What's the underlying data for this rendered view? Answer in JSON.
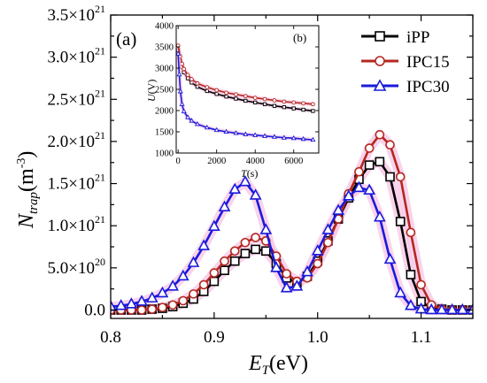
{
  "chart_data": [
    {
      "type": "line",
      "panel_label": "(a)",
      "xlabel_main": "E",
      "xlabel_sub": "T",
      "xlabel_unit": "(eV)",
      "ylabel_main": "N",
      "ylabel_sub": "trap",
      "ylabel_unit_base": "(m",
      "ylabel_unit_sup": "-3",
      "ylabel_unit_close": ")",
      "xlim": [
        0.8,
        1.15
      ],
      "ylim": [
        -0.1,
        3.5
      ],
      "y_exponent_unit": 1e+21,
      "x_ticks": [
        0.8,
        0.9,
        1.0,
        1.1
      ],
      "x_tick_labels": [
        "0.8",
        "0.9",
        "1.0",
        "1.1"
      ],
      "y_ticks": [
        {
          "value": 0.0,
          "mant": "0.0",
          "exp": ""
        },
        {
          "value": 0.5,
          "mant": "5.0×10",
          "exp": "20"
        },
        {
          "value": 1.0,
          "mant": "1.0×10",
          "exp": "21"
        },
        {
          "value": 1.5,
          "mant": "1.5×10",
          "exp": "21"
        },
        {
          "value": 2.0,
          "mant": "2.0×10",
          "exp": "21"
        },
        {
          "value": 2.5,
          "mant": "2.5×10",
          "exp": "21"
        },
        {
          "value": 3.0,
          "mant": "3.0×10",
          "exp": "21"
        },
        {
          "value": 3.5,
          "mant": "3.5×10",
          "exp": "21"
        }
      ],
      "legend_position": "top-right",
      "series": [
        {
          "name": "iPP",
          "color": "#000000",
          "marker": "square",
          "x": [
            0.8,
            0.81,
            0.82,
            0.83,
            0.84,
            0.85,
            0.86,
            0.87,
            0.88,
            0.89,
            0.9,
            0.91,
            0.92,
            0.93,
            0.94,
            0.95,
            0.96,
            0.97,
            0.98,
            0.99,
            1.0,
            1.01,
            1.02,
            1.03,
            1.04,
            1.05,
            1.06,
            1.07,
            1.08,
            1.09,
            1.1,
            1.11,
            1.12,
            1.13,
            1.14,
            1.15
          ],
          "y": [
            0.0,
            0.0,
            0.0,
            0.0,
            0.01,
            0.02,
            0.04,
            0.08,
            0.13,
            0.22,
            0.34,
            0.47,
            0.58,
            0.67,
            0.72,
            0.7,
            0.55,
            0.38,
            0.32,
            0.4,
            0.58,
            0.82,
            1.08,
            1.33,
            1.55,
            1.72,
            1.76,
            1.58,
            1.05,
            0.42,
            0.1,
            0.02,
            0.01,
            0.0,
            0.0,
            0.0
          ]
        },
        {
          "name": "IPC15",
          "color": "#b5271f",
          "marker": "circle",
          "x": [
            0.8,
            0.81,
            0.82,
            0.83,
            0.84,
            0.85,
            0.86,
            0.87,
            0.88,
            0.89,
            0.9,
            0.91,
            0.92,
            0.93,
            0.94,
            0.95,
            0.96,
            0.97,
            0.98,
            0.99,
            1.0,
            1.01,
            1.02,
            1.03,
            1.04,
            1.05,
            1.06,
            1.07,
            1.08,
            1.09,
            1.1,
            1.11,
            1.12,
            1.13,
            1.14,
            1.15
          ],
          "y": [
            0.0,
            0.0,
            0.0,
            0.0,
            0.01,
            0.03,
            0.06,
            0.11,
            0.19,
            0.3,
            0.44,
            0.58,
            0.7,
            0.8,
            0.86,
            0.82,
            0.64,
            0.43,
            0.34,
            0.38,
            0.55,
            0.8,
            1.08,
            1.38,
            1.64,
            1.92,
            2.08,
            1.96,
            1.58,
            0.92,
            0.3,
            0.06,
            0.01,
            0.0,
            0.0,
            0.0
          ]
        },
        {
          "name": "IPC30",
          "color": "#1a1adc",
          "marker": "triangle",
          "x": [
            0.8,
            0.81,
            0.82,
            0.83,
            0.84,
            0.85,
            0.86,
            0.87,
            0.88,
            0.89,
            0.9,
            0.91,
            0.92,
            0.93,
            0.94,
            0.95,
            0.96,
            0.97,
            0.98,
            0.99,
            1.0,
            1.01,
            1.02,
            1.03,
            1.04,
            1.05,
            1.06,
            1.07,
            1.08,
            1.09,
            1.1,
            1.11,
            1.12,
            1.13,
            1.14,
            1.15
          ],
          "y": [
            0.04,
            0.05,
            0.07,
            0.1,
            0.14,
            0.2,
            0.28,
            0.4,
            0.56,
            0.76,
            0.99,
            1.22,
            1.43,
            1.52,
            1.36,
            0.95,
            0.5,
            0.26,
            0.28,
            0.45,
            0.7,
            0.95,
            1.18,
            1.35,
            1.45,
            1.42,
            1.1,
            0.6,
            0.2,
            0.05,
            0.01,
            0.0,
            0.0,
            0.0,
            0.0,
            0.0
          ]
        }
      ]
    },
    {
      "type": "line",
      "panel_label": "(b)",
      "xlabel_main": "T",
      "xlabel_unit": "(s)",
      "ylabel_main": "U",
      "ylabel_unit": "(V)",
      "xlim": [
        -100,
        7300
      ],
      "ylim": [
        1000,
        4000
      ],
      "x_ticks": [
        0,
        2000,
        4000,
        6000
      ],
      "y_ticks": [
        1000,
        1500,
        2000,
        2500,
        3000,
        3500,
        4000
      ],
      "series": [
        {
          "name": "iPP",
          "color": "#000000",
          "x": [
            0,
            100,
            200,
            300,
            500,
            700,
            1000,
            1500,
            2000,
            2500,
            3000,
            3500,
            4000,
            4500,
            5000,
            5500,
            6000,
            6500,
            7000
          ],
          "y": [
            3420,
            3180,
            3020,
            2900,
            2760,
            2660,
            2560,
            2460,
            2390,
            2330,
            2280,
            2230,
            2190,
            2150,
            2110,
            2080,
            2050,
            2020,
            1990
          ]
        },
        {
          "name": "IPC15",
          "color": "#b5271f",
          "x": [
            0,
            100,
            200,
            300,
            500,
            700,
            1000,
            1500,
            2000,
            2500,
            3000,
            3500,
            4000,
            4500,
            5000,
            5500,
            6000,
            6500,
            7000
          ],
          "y": [
            3530,
            3280,
            3100,
            2980,
            2840,
            2740,
            2640,
            2550,
            2480,
            2420,
            2380,
            2340,
            2300,
            2270,
            2240,
            2210,
            2190,
            2170,
            2150
          ]
        },
        {
          "name": "IPC30",
          "color": "#1a1adc",
          "x": [
            0,
            60,
            120,
            200,
            300,
            500,
            700,
            1000,
            1500,
            2000,
            2500,
            3000,
            3500,
            4000,
            4500,
            5000,
            5500,
            6000,
            6500,
            7000
          ],
          "y": [
            3340,
            2850,
            2450,
            2150,
            1980,
            1840,
            1760,
            1680,
            1600,
            1540,
            1500,
            1470,
            1440,
            1420,
            1400,
            1380,
            1360,
            1350,
            1330,
            1310
          ]
        }
      ]
    }
  ]
}
